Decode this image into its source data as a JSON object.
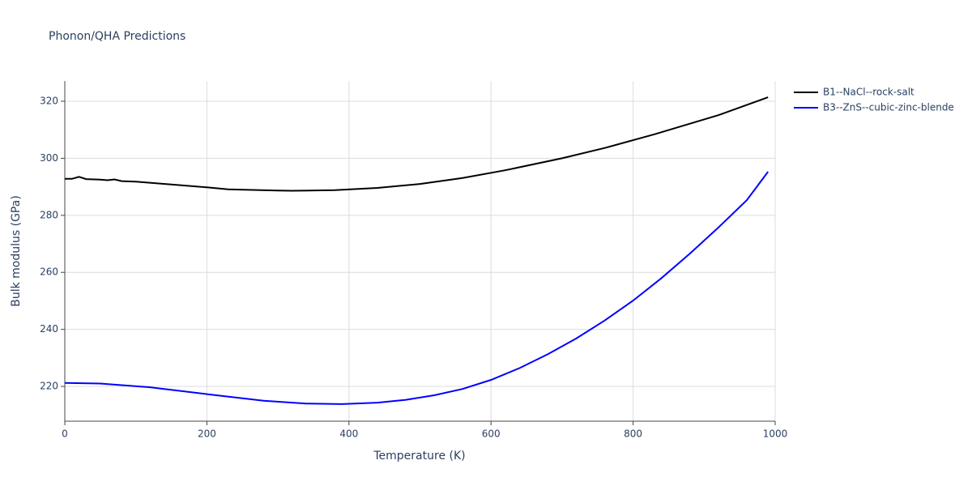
{
  "chart_data": {
    "type": "line",
    "title": "Phonon/QHA Predictions",
    "x_label": "Temperature (K)",
    "y_label": "Bulk modulus (GPa)",
    "xlim": [
      0,
      1000
    ],
    "ylim": [
      207.8,
      327.1
    ],
    "xticks": [
      0,
      200,
      400,
      600,
      800,
      1000
    ],
    "yticks": [
      220,
      240,
      260,
      280,
      300,
      320
    ],
    "grid": true,
    "legend": "right",
    "series": [
      {
        "name": "B1--NaCl--rock-salt",
        "color": "#000000",
        "x": [
          0,
          10,
          20,
          30,
          50,
          60,
          70,
          80,
          100,
          150,
          200,
          230,
          300,
          320,
          380,
          440,
          500,
          560,
          620,
          700,
          760,
          830,
          920,
          990
        ],
        "values": [
          292.8,
          292.8,
          293.5,
          292.7,
          292.5,
          292.3,
          292.6,
          292.0,
          291.8,
          290.8,
          289.8,
          289.1,
          288.7,
          288.6,
          288.8,
          289.6,
          291.0,
          293.1,
          295.8,
          300.0,
          303.6,
          308.4,
          315.1,
          321.4
        ]
      },
      {
        "name": "B3--ZnS--cubic-zinc-blende",
        "color": "#0000ff",
        "x": [
          0,
          50,
          120,
          200,
          280,
          340,
          390,
          440,
          480,
          520,
          560,
          600,
          640,
          680,
          720,
          760,
          800,
          840,
          880,
          920,
          960,
          990
        ],
        "values": [
          221.2,
          221.0,
          219.7,
          217.3,
          215.0,
          214.0,
          213.8,
          214.3,
          215.3,
          216.9,
          219.1,
          222.3,
          226.4,
          231.3,
          236.8,
          243.1,
          250.1,
          258.0,
          266.6,
          275.7,
          285.3,
          295.3
        ]
      }
    ]
  }
}
